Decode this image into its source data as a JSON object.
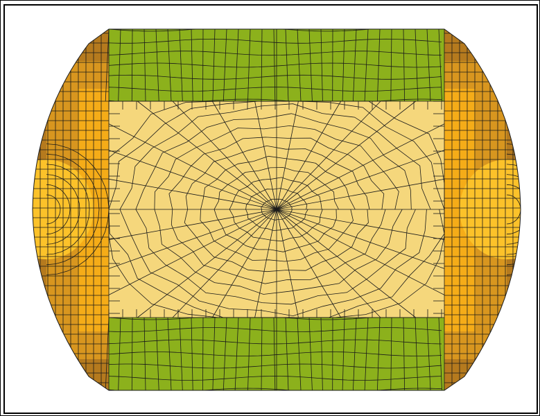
{
  "colors": {
    "background": "#ffffff",
    "frame": "#000000",
    "mesh_lines": "#1a1a1a",
    "center_region": "#f5d77c",
    "top_bottom_bands": "#8cb11c",
    "side_outer": "#b57a1e",
    "side_mid": "#d8961f",
    "side_inner": "#f5ac18",
    "side_bulge": "#fcc22a"
  },
  "regions": [
    {
      "name": "center-rectangle",
      "color_key": "center_region"
    },
    {
      "name": "top-band",
      "color_key": "top_bottom_bands"
    },
    {
      "name": "bottom-band",
      "color_key": "top_bottom_bands"
    },
    {
      "name": "left-cap",
      "color_key": "side_mid"
    },
    {
      "name": "right-cap",
      "color_key": "side_mid"
    }
  ]
}
